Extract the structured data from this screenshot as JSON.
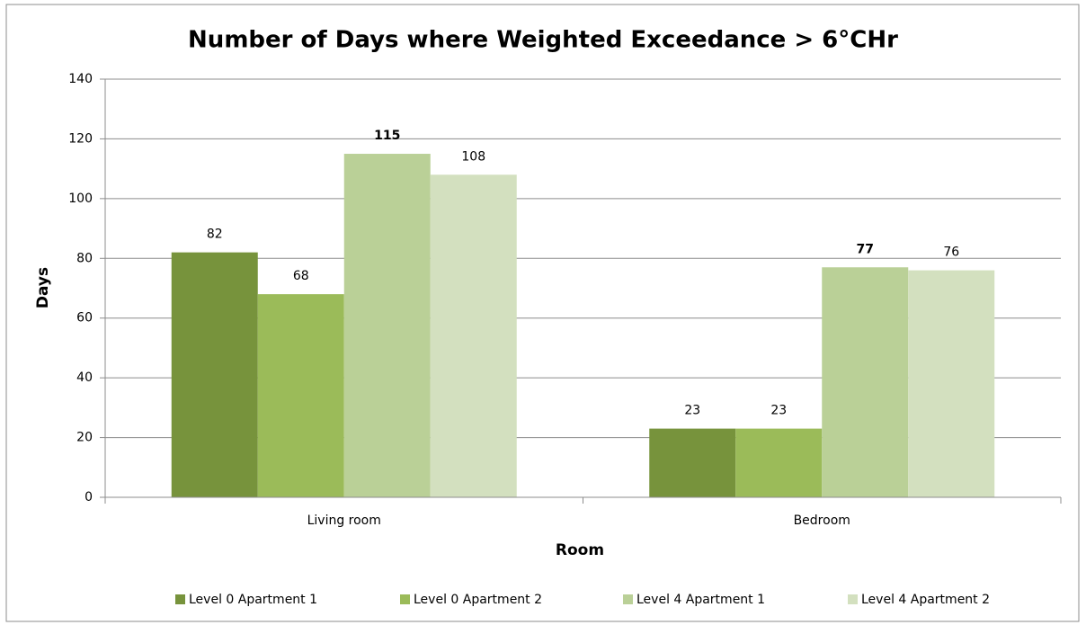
{
  "chart_data": {
    "type": "bar",
    "title": "Number of Days where Weighted Exceedance > 6°CHr",
    "x_label": "Room",
    "y_label": "Days",
    "categories": [
      "Living room",
      "Bedroom"
    ],
    "series": [
      {
        "name": "Level 0 Apartment 1",
        "color": "#77933c",
        "values": [
          82,
          23
        ]
      },
      {
        "name": "Level 0 Apartment 2",
        "color": "#9bbb59",
        "values": [
          68,
          23
        ]
      },
      {
        "name": "Level 4 Apartment 1",
        "color": "#bad097",
        "values": [
          115,
          77
        ]
      },
      {
        "name": "Level 4 Apartment 2",
        "color": "#d3e0bf",
        "values": [
          108,
          76
        ]
      }
    ],
    "ylim": [
      0,
      140
    ],
    "yticks": [
      0,
      20,
      40,
      60,
      80,
      100,
      120,
      140
    ],
    "grid": true,
    "legend": "bottom"
  }
}
